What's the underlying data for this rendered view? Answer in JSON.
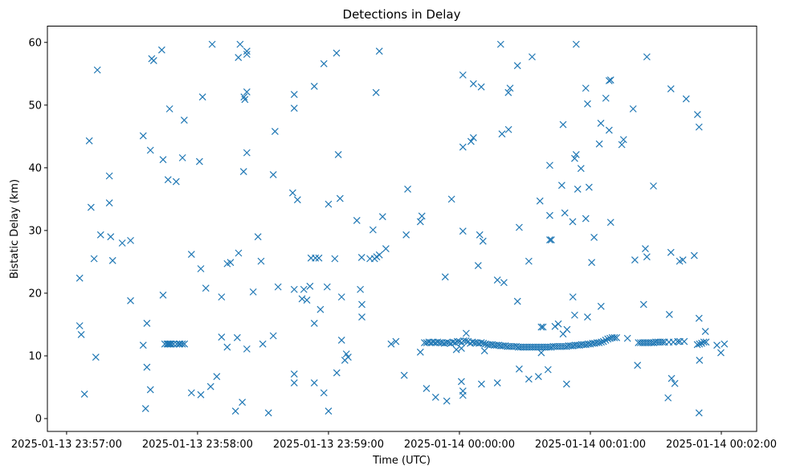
{
  "chart_data": {
    "type": "scatter",
    "title": "Detections in Delay",
    "xlabel": "Time (UTC)",
    "ylabel": "Bistatic Delay (km)",
    "xlim": [
      -8.8,
      316.2
    ],
    "ylim": [
      -2.05,
      62.6
    ],
    "grid": false,
    "marker": "x",
    "color": "#1f77b4",
    "x_ticks": [
      {
        "value": 0,
        "label": "2025-01-13 23:57:00"
      },
      {
        "value": 60,
        "label": "2025-01-13 23:58:00"
      },
      {
        "value": 120,
        "label": "2025-01-13 23:59:00"
      },
      {
        "value": 180,
        "label": "2025-01-14 00:00:00"
      },
      {
        "value": 240,
        "label": "2025-01-14 00:01:00"
      },
      {
        "value": 300,
        "label": "2025-01-14 00:02:00"
      }
    ],
    "y_ticks": [
      {
        "value": 0,
        "label": "0"
      },
      {
        "value": 10,
        "label": "10"
      },
      {
        "value": 20,
        "label": "20"
      },
      {
        "value": 30,
        "label": "30"
      },
      {
        "value": 40,
        "label": "40"
      },
      {
        "value": 50,
        "label": "50"
      },
      {
        "value": 60,
        "label": "60"
      }
    ],
    "points": [
      [
        14.1,
        55.6
      ],
      [
        39.0,
        57.4
      ],
      [
        39.9,
        57.1
      ],
      [
        43.6,
        58.8
      ],
      [
        66.7,
        59.7
      ],
      [
        79.5,
        59.7
      ],
      [
        82.6,
        58.6
      ],
      [
        82.6,
        58.1
      ],
      [
        78.7,
        57.6
      ],
      [
        117.9,
        56.6
      ],
      [
        123.7,
        58.3
      ],
      [
        143.3,
        58.6
      ],
      [
        113.5,
        53.0
      ],
      [
        104.3,
        51.7
      ],
      [
        104.3,
        49.5
      ],
      [
        141.8,
        52.0
      ],
      [
        62.3,
        51.3
      ],
      [
        82.6,
        52.1
      ],
      [
        81.3,
        51.3
      ],
      [
        81.7,
        50.9
      ],
      [
        47.2,
        49.4
      ],
      [
        53.9,
        47.6
      ],
      [
        95.5,
        45.8
      ],
      [
        10.4,
        44.3
      ],
      [
        35.1,
        45.1
      ],
      [
        38.4,
        42.8
      ],
      [
        44.2,
        41.3
      ],
      [
        53.1,
        41.6
      ],
      [
        60.9,
        41.0
      ],
      [
        82.6,
        42.4
      ],
      [
        124.5,
        42.1
      ],
      [
        81.1,
        39.4
      ],
      [
        94.7,
        38.9
      ],
      [
        19.6,
        38.7
      ],
      [
        46.5,
        38.1
      ],
      [
        50.2,
        37.8
      ],
      [
        103.6,
        36.0
      ],
      [
        105.8,
        34.9
      ],
      [
        120.0,
        34.2
      ],
      [
        125.3,
        35.1
      ],
      [
        156.3,
        36.6
      ],
      [
        11.2,
        33.7
      ],
      [
        19.6,
        34.4
      ],
      [
        133.0,
        31.6
      ],
      [
        144.8,
        32.2
      ],
      [
        140.4,
        30.1
      ],
      [
        155.6,
        29.3
      ],
      [
        15.6,
        29.3
      ],
      [
        20.2,
        29.0
      ],
      [
        25.5,
        28.0
      ],
      [
        29.3,
        28.4
      ],
      [
        87.7,
        29.0
      ],
      [
        12.6,
        25.5
      ],
      [
        21.1,
        25.2
      ],
      [
        57.2,
        26.2
      ],
      [
        78.8,
        26.4
      ],
      [
        89.1,
        25.1
      ],
      [
        73.6,
        24.7
      ],
      [
        75.1,
        24.9
      ],
      [
        61.5,
        23.9
      ],
      [
        146.3,
        27.1
      ],
      [
        143.3,
        26.1
      ],
      [
        112.0,
        25.6
      ],
      [
        114.0,
        25.6
      ],
      [
        115.6,
        25.6
      ],
      [
        122.9,
        25.5
      ],
      [
        135.2,
        25.7
      ],
      [
        139.0,
        25.5
      ],
      [
        141.1,
        25.5
      ],
      [
        142.1,
        25.8
      ],
      [
        6.0,
        22.4
      ],
      [
        63.8,
        20.8
      ],
      [
        71.0,
        19.4
      ],
      [
        85.5,
        20.2
      ],
      [
        96.9,
        21.0
      ],
      [
        104.3,
        20.6
      ],
      [
        108.7,
        20.6
      ],
      [
        111.5,
        21.1
      ],
      [
        107.9,
        19.1
      ],
      [
        110.1,
        18.9
      ],
      [
        119.4,
        21.0
      ],
      [
        126.0,
        19.4
      ],
      [
        134.6,
        20.6
      ],
      [
        116.3,
        17.4
      ],
      [
        135.3,
        18.2
      ],
      [
        135.3,
        16.2
      ],
      [
        29.3,
        18.8
      ],
      [
        44.2,
        19.7
      ],
      [
        113.5,
        15.2
      ],
      [
        36.8,
        15.2
      ],
      [
        6.0,
        14.8
      ],
      [
        6.7,
        13.4
      ],
      [
        71.0,
        13.0
      ],
      [
        78.2,
        12.9
      ],
      [
        94.7,
        13.2
      ],
      [
        126.0,
        12.5
      ],
      [
        73.6,
        11.4
      ],
      [
        82.6,
        11.1
      ],
      [
        89.9,
        11.9
      ],
      [
        35.1,
        11.7
      ],
      [
        148.7,
        11.9
      ],
      [
        150.9,
        12.3
      ],
      [
        45.0,
        11.9
      ],
      [
        46.0,
        11.9
      ],
      [
        46.5,
        11.9
      ],
      [
        47.0,
        11.9
      ],
      [
        47.5,
        11.9
      ],
      [
        48.0,
        11.9
      ],
      [
        49.0,
        11.9
      ],
      [
        50.5,
        11.9
      ],
      [
        51.5,
        11.9
      ],
      [
        52.0,
        11.9
      ],
      [
        53.0,
        11.9
      ],
      [
        54.0,
        11.9
      ],
      [
        13.4,
        9.8
      ],
      [
        128.2,
        10.3
      ],
      [
        127.5,
        9.3
      ],
      [
        129.0,
        9.8
      ],
      [
        36.8,
        8.2
      ],
      [
        68.8,
        6.7
      ],
      [
        154.7,
        6.9
      ],
      [
        104.3,
        7.1
      ],
      [
        104.3,
        5.7
      ],
      [
        113.5,
        5.7
      ],
      [
        123.8,
        7.3
      ],
      [
        8.2,
        3.9
      ],
      [
        38.4,
        4.6
      ],
      [
        57.2,
        4.1
      ],
      [
        61.5,
        3.8
      ],
      [
        66.0,
        5.1
      ],
      [
        80.5,
        2.6
      ],
      [
        117.9,
        4.1
      ],
      [
        36.2,
        1.6
      ],
      [
        77.4,
        1.2
      ],
      [
        92.5,
        0.9
      ],
      [
        120.0,
        1.2
      ],
      [
        198.9,
        59.7
      ],
      [
        233.5,
        59.7
      ],
      [
        265.9,
        57.7
      ],
      [
        213.3,
        57.7
      ],
      [
        206.6,
        56.3
      ],
      [
        181.6,
        54.8
      ],
      [
        186.4,
        53.4
      ],
      [
        190.0,
        52.9
      ],
      [
        203.2,
        52.7
      ],
      [
        202.4,
        52.0
      ],
      [
        237.9,
        52.7
      ],
      [
        238.7,
        50.2
      ],
      [
        248.6,
        53.9
      ],
      [
        249.3,
        54.0
      ],
      [
        247.1,
        51.1
      ],
      [
        259.6,
        49.4
      ],
      [
        276.9,
        52.6
      ],
      [
        283.9,
        51.0
      ],
      [
        289.1,
        48.5
      ],
      [
        289.8,
        46.5
      ],
      [
        227.5,
        46.9
      ],
      [
        244.8,
        47.1
      ],
      [
        248.6,
        46.0
      ],
      [
        181.6,
        43.3
      ],
      [
        185.3,
        44.2
      ],
      [
        186.4,
        44.8
      ],
      [
        199.5,
        45.4
      ],
      [
        202.5,
        46.1
      ],
      [
        244.1,
        43.8
      ],
      [
        254.4,
        43.7
      ],
      [
        255.2,
        44.5
      ],
      [
        232.8,
        41.5
      ],
      [
        233.5,
        42.1
      ],
      [
        235.7,
        39.9
      ],
      [
        221.4,
        40.4
      ],
      [
        226.9,
        37.2
      ],
      [
        234.2,
        36.6
      ],
      [
        239.4,
        36.9
      ],
      [
        268.9,
        37.1
      ],
      [
        176.4,
        35.0
      ],
      [
        216.9,
        34.7
      ],
      [
        228.3,
        32.8
      ],
      [
        221.4,
        32.4
      ],
      [
        231.9,
        31.4
      ],
      [
        237.9,
        31.9
      ],
      [
        249.3,
        31.3
      ],
      [
        162.1,
        31.4
      ],
      [
        162.8,
        32.3
      ],
      [
        181.6,
        29.9
      ],
      [
        189.3,
        29.3
      ],
      [
        190.8,
        28.3
      ],
      [
        207.4,
        30.5
      ],
      [
        221.4,
        28.5
      ],
      [
        222.1,
        28.5
      ],
      [
        241.7,
        28.9
      ],
      [
        188.6,
        24.4
      ],
      [
        211.8,
        25.1
      ],
      [
        240.6,
        24.9
      ],
      [
        260.4,
        25.3
      ],
      [
        265.2,
        27.1
      ],
      [
        265.9,
        25.8
      ],
      [
        276.9,
        26.5
      ],
      [
        280.9,
        25.1
      ],
      [
        282.4,
        25.3
      ],
      [
        287.6,
        26.0
      ],
      [
        173.5,
        22.6
      ],
      [
        197.4,
        22.1
      ],
      [
        200.4,
        21.7
      ],
      [
        206.6,
        18.7
      ],
      [
        232.0,
        19.4
      ],
      [
        232.8,
        16.5
      ],
      [
        238.7,
        16.2
      ],
      [
        244.9,
        17.9
      ],
      [
        264.4,
        18.2
      ],
      [
        276.2,
        16.6
      ],
      [
        289.8,
        16.0
      ],
      [
        292.7,
        13.9
      ],
      [
        217.5,
        14.6
      ],
      [
        218.3,
        14.6
      ],
      [
        223.8,
        14.7
      ],
      [
        225.3,
        15.1
      ],
      [
        227.5,
        13.5
      ],
      [
        229.3,
        14.2
      ],
      [
        183.1,
        13.6
      ],
      [
        162.1,
        10.6
      ],
      [
        191.5,
        10.8
      ],
      [
        178.6,
        11.0
      ],
      [
        180.9,
        11.2
      ],
      [
        217.5,
        10.5
      ],
      [
        261.6,
        8.5
      ],
      [
        290.0,
        9.3
      ],
      [
        299.8,
        10.5
      ],
      [
        298.0,
        11.7
      ],
      [
        301.4,
        11.9
      ],
      [
        207.4,
        7.9
      ],
      [
        211.8,
        6.3
      ],
      [
        216.2,
        6.7
      ],
      [
        220.6,
        7.8
      ],
      [
        229.1,
        5.5
      ],
      [
        164.9,
        4.8
      ],
      [
        169.1,
        3.4
      ],
      [
        174.2,
        2.8
      ],
      [
        180.9,
        5.9
      ],
      [
        181.6,
        4.4
      ],
      [
        181.6,
        3.7
      ],
      [
        190.1,
        5.5
      ],
      [
        197.4,
        5.7
      ],
      [
        277.2,
        6.4
      ],
      [
        278.7,
        5.6
      ],
      [
        275.6,
        3.3
      ],
      [
        289.8,
        0.9
      ],
      [
        164,
        12.1
      ],
      [
        165,
        12.1
      ],
      [
        166,
        12.2
      ],
      [
        167,
        12.1
      ],
      [
        168,
        12.2
      ],
      [
        169,
        12.1
      ],
      [
        170,
        12.2
      ],
      [
        171,
        12.1
      ],
      [
        172,
        12.1
      ],
      [
        173,
        12.0
      ],
      [
        174,
        12.1
      ],
      [
        175,
        12.1
      ],
      [
        176,
        12.0
      ],
      [
        177,
        12.2
      ],
      [
        178,
        12.1
      ],
      [
        179,
        12.3
      ],
      [
        180,
        12.3
      ],
      [
        181,
        12.1
      ],
      [
        182,
        12.4
      ],
      [
        183,
        12.4
      ],
      [
        184,
        12.3
      ],
      [
        185,
        12.0
      ],
      [
        186,
        12.2
      ],
      [
        187,
        12.1
      ],
      [
        188,
        12.1
      ],
      [
        189,
        12.0
      ],
      [
        190,
        12.1
      ],
      [
        191,
        12.0
      ],
      [
        192,
        11.9
      ],
      [
        193,
        11.8
      ],
      [
        194,
        11.8
      ],
      [
        195,
        11.8
      ],
      [
        196,
        11.7
      ],
      [
        197,
        11.7
      ],
      [
        198,
        11.7
      ],
      [
        199,
        11.6
      ],
      [
        200,
        11.6
      ],
      [
        201,
        11.6
      ],
      [
        202,
        11.5
      ],
      [
        203,
        11.5
      ],
      [
        204,
        11.5
      ],
      [
        205,
        11.5
      ],
      [
        206,
        11.5
      ],
      [
        207,
        11.4
      ],
      [
        208,
        11.4
      ],
      [
        209,
        11.4
      ],
      [
        210,
        11.4
      ],
      [
        211,
        11.4
      ],
      [
        212,
        11.4
      ],
      [
        213,
        11.4
      ],
      [
        214,
        11.4
      ],
      [
        215,
        11.4
      ],
      [
        216,
        11.4
      ],
      [
        217,
        11.4
      ],
      [
        218,
        11.4
      ],
      [
        219,
        11.4
      ],
      [
        220,
        11.4
      ],
      [
        221,
        11.4
      ],
      [
        222,
        11.4
      ],
      [
        223,
        11.5
      ],
      [
        224,
        11.5
      ],
      [
        225,
        11.5
      ],
      [
        226,
        11.5
      ],
      [
        227,
        11.5
      ],
      [
        228,
        11.5
      ],
      [
        229,
        11.5
      ],
      [
        230,
        11.6
      ],
      [
        231,
        11.6
      ],
      [
        232,
        11.6
      ],
      [
        233,
        11.7
      ],
      [
        234,
        11.7
      ],
      [
        235,
        11.7
      ],
      [
        236,
        11.8
      ],
      [
        237,
        11.8
      ],
      [
        238,
        11.8
      ],
      [
        239,
        11.9
      ],
      [
        240,
        11.9
      ],
      [
        241,
        12.0
      ],
      [
        242,
        12.0
      ],
      [
        243,
        12.1
      ],
      [
        244,
        12.1
      ],
      [
        245,
        12.2
      ],
      [
        246,
        12.3
      ],
      [
        247,
        12.5
      ],
      [
        248,
        12.7
      ],
      [
        249,
        12.8
      ],
      [
        250,
        12.9
      ],
      [
        251,
        12.9
      ],
      [
        252,
        12.9
      ],
      [
        257,
        12.8
      ],
      [
        262,
        12.1
      ],
      [
        263,
        12.1
      ],
      [
        264,
        12.1
      ],
      [
        265,
        12.1
      ],
      [
        266,
        12.1
      ],
      [
        267,
        12.1
      ],
      [
        268,
        12.1
      ],
      [
        269,
        12.1
      ],
      [
        270,
        12.2
      ],
      [
        271,
        12.2
      ],
      [
        272,
        12.2
      ],
      [
        273,
        12.2
      ],
      [
        274,
        12.2
      ],
      [
        276,
        12.2
      ],
      [
        278,
        12.2
      ],
      [
        280,
        12.3
      ],
      [
        281,
        12.3
      ],
      [
        283,
        12.3
      ],
      [
        289,
        11.8
      ],
      [
        290,
        11.9
      ],
      [
        291,
        12.0
      ],
      [
        292,
        12.2
      ],
      [
        293,
        12.2
      ]
    ]
  }
}
